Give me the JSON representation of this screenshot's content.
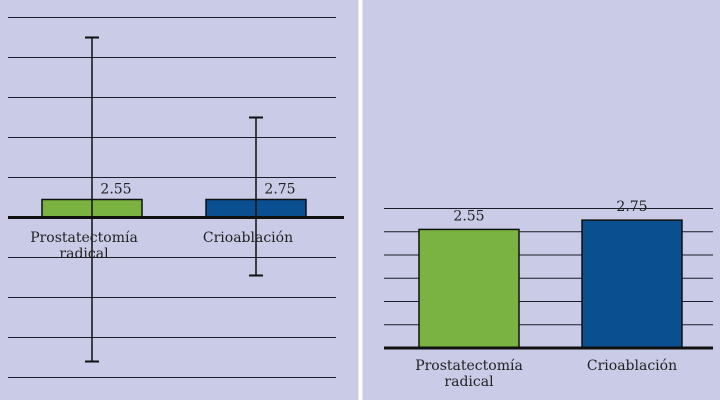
{
  "chart_data": [
    {
      "type": "bar",
      "categories": [
        "Prostatectomía radical",
        "Crioablación"
      ],
      "category_lines": [
        [
          "Prostatectomía",
          "radical"
        ],
        [
          "Crioablación"
        ]
      ],
      "values": [
        2.55,
        2.75
      ],
      "data_labels": [
        "2.55",
        "2.75"
      ],
      "error_low": [
        -3.6,
        -1.45
      ],
      "error_high": [
        4.5,
        2.5
      ],
      "colors": [
        "#7ab342",
        "#0a4f8f"
      ],
      "ylim": [
        -4,
        5
      ],
      "grid": true,
      "baseline": 0
    },
    {
      "type": "bar",
      "categories": [
        "Prostatectomía radical",
        "Crioablación"
      ],
      "category_lines": [
        [
          "Prostatectomía",
          "radical"
        ],
        [
          "Crioablación"
        ]
      ],
      "values": [
        2.55,
        2.75
      ],
      "data_labels": [
        "2.55",
        "2.75"
      ],
      "colors": [
        "#7ab342",
        "#0a4f8f"
      ],
      "ylim": [
        0,
        3.3
      ],
      "grid": true
    }
  ]
}
